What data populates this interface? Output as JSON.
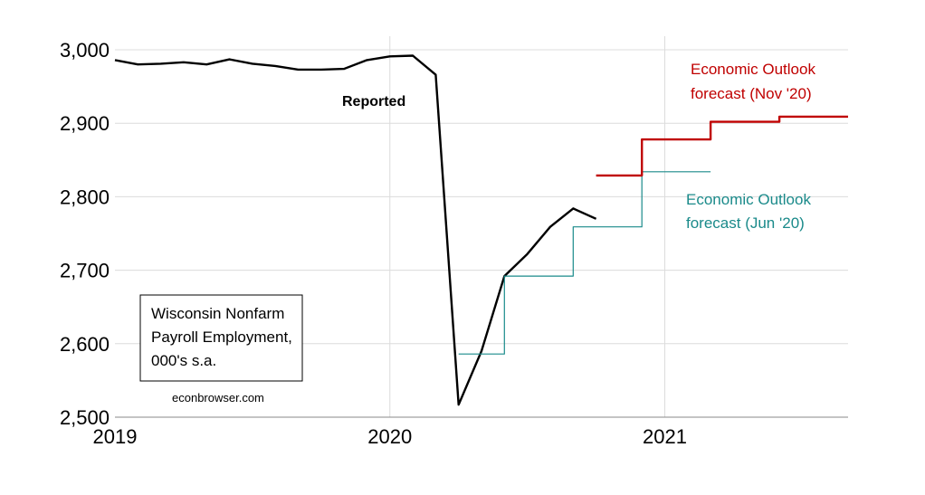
{
  "chart_data": {
    "type": "line",
    "title": "",
    "ylim": [
      2500,
      3000
    ],
    "yticks": [
      2500,
      2600,
      2700,
      2800,
      2900,
      3000
    ],
    "ytick_labels": [
      "2,500",
      "2,600",
      "2,700",
      "2,800",
      "2,900",
      "3,000"
    ],
    "xlim": [
      "2019-01",
      "2021-09"
    ],
    "xtick_labels": [
      "2019",
      "2020",
      "2021"
    ],
    "xticks": [
      "2019-01",
      "2020-01",
      "2021-01"
    ],
    "grid": true,
    "series": [
      {
        "name": "Reported",
        "color": "#000000",
        "x": [
          "2019-01",
          "2019-02",
          "2019-03",
          "2019-04",
          "2019-05",
          "2019-06",
          "2019-07",
          "2019-08",
          "2019-09",
          "2019-10",
          "2019-11",
          "2019-12",
          "2020-01",
          "2020-02",
          "2020-03",
          "2020-04",
          "2020-05",
          "2020-06",
          "2020-07",
          "2020-08",
          "2020-09",
          "2020-10"
        ],
        "y": [
          2986,
          2980,
          2981,
          2983,
          2980,
          2987,
          2981,
          2978,
          2973,
          2973,
          2974,
          2986,
          2991,
          2992,
          2966,
          2517,
          2590,
          2692,
          2722,
          2759,
          2784,
          2770
        ]
      },
      {
        "name": "Economic Outlook forecast (Jun '20)",
        "color": "#1a8a8a",
        "x": [
          "2020-04",
          "2020-06",
          "2020-06",
          "2020-09",
          "2020-09",
          "2020-12",
          "2020-12",
          "2021-03"
        ],
        "y": [
          2586,
          2586,
          2692,
          2692,
          2759,
          2759,
          2834,
          2834
        ]
      },
      {
        "name": "Economic Outlook forecast (Nov '20)",
        "color": "#c00000",
        "x": [
          "2020-10",
          "2020-12",
          "2020-12",
          "2021-03",
          "2021-03",
          "2021-06",
          "2021-06",
          "2021-09"
        ],
        "y": [
          2829,
          2829,
          2878,
          2878,
          2902,
          2902,
          2909,
          2909
        ]
      }
    ],
    "annotations": {
      "reported": "Reported",
      "nov_line1": "Economic Outlook",
      "nov_line2": "forecast (Nov '20)",
      "jun_line1": "Economic Outlook",
      "jun_line2": "forecast (Jun '20)",
      "box_line1": "Wisconsin Nonfarm",
      "box_line2": "Payroll Employment,",
      "box_line3": "000's s.a.",
      "credit": "econbrowser.com"
    }
  }
}
